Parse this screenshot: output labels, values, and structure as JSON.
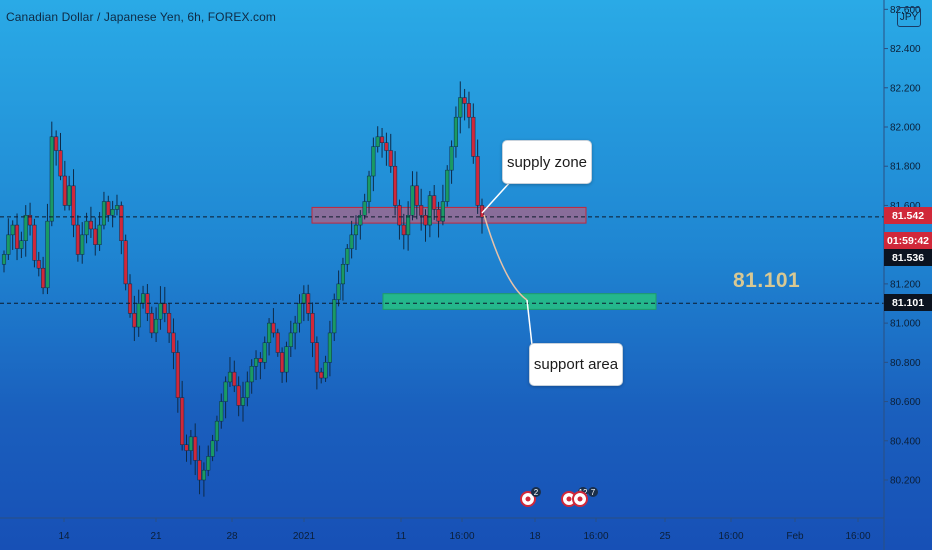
{
  "header": {
    "title": "Canadian Dollar / Japanese Yen, 6h, FOREX.com",
    "currency": "JPY"
  },
  "price_labels": {
    "current_price": "81.542",
    "countdown": "01:59:42",
    "bid_price": "81.536",
    "support_price": "81.101"
  },
  "annotations": {
    "supply_label": "supply zone",
    "support_label": "support area",
    "level_text": "81.101"
  },
  "event_markers": {
    "first_count": "2",
    "second_count": "12",
    "third_count": "7"
  },
  "colors": {
    "bull_candle": "#1a9a64",
    "bear_candle": "#d0283a",
    "supply_zone": "#e0566a",
    "support_zone": "#26c281",
    "current_price_tag": "#d0283a",
    "support_price_tag": "#0b1320"
  },
  "chart_data": {
    "type": "candlestick",
    "symbol": "CAD/JPY",
    "timeframe": "6h",
    "y_axis": {
      "ticks": [
        "80.200",
        "80.400",
        "80.600",
        "80.800",
        "81.000",
        "81.200",
        "81.400",
        "81.600",
        "81.800",
        "82.000",
        "82.200",
        "82.400",
        "82.600"
      ],
      "range": [
        80.0,
        82.65
      ]
    },
    "x_axis": {
      "ticks": [
        "14",
        "21",
        "28",
        "2021",
        "11",
        "16:00",
        "18",
        "16:00",
        "25",
        "16:00",
        "Feb",
        "16:00"
      ]
    },
    "horizontal_lines": [
      81.542,
      81.101
    ],
    "zones": [
      {
        "name": "supply zone",
        "from": 81.51,
        "to": 81.59
      },
      {
        "name": "support area",
        "from": 81.07,
        "to": 81.15
      }
    ],
    "closes": [
      81.35,
      81.45,
      81.5,
      81.38,
      81.42,
      81.55,
      81.5,
      81.32,
      81.28,
      81.18,
      81.52,
      81.95,
      81.88,
      81.75,
      81.6,
      81.7,
      81.5,
      81.35,
      81.45,
      81.52,
      81.48,
      81.4,
      81.5,
      81.62,
      81.55,
      81.58,
      81.6,
      81.42,
      81.2,
      81.05,
      80.98,
      81.1,
      81.15,
      81.05,
      80.95,
      81.02,
      81.1,
      81.05,
      80.95,
      80.85,
      80.62,
      80.38,
      80.35,
      80.42,
      80.3,
      80.2,
      80.25,
      80.32,
      80.4,
      80.5,
      80.6,
      80.7,
      80.75,
      80.68,
      80.58,
      80.62,
      80.7,
      80.78,
      80.82,
      80.8,
      80.9,
      81.0,
      80.95,
      80.85,
      80.75,
      80.88,
      80.95,
      81.0,
      81.1,
      81.15,
      81.05,
      80.9,
      80.75,
      80.72,
      80.8,
      80.95,
      81.12,
      81.2,
      81.3,
      81.38,
      81.45,
      81.5,
      81.55,
      81.62,
      81.75,
      81.9,
      81.95,
      81.92,
      81.88,
      81.8,
      81.6,
      81.5,
      81.45,
      81.55,
      81.7,
      81.6,
      81.55,
      81.5,
      81.65,
      81.58,
      81.52,
      81.62,
      81.78,
      81.9,
      82.05,
      82.15,
      82.12,
      82.05,
      81.85,
      81.6,
      81.54
    ],
    "opens": [
      81.3,
      81.35,
      81.45,
      81.5,
      81.38,
      81.42,
      81.55,
      81.5,
      81.32,
      81.28,
      81.18,
      81.52,
      81.95,
      81.88,
      81.75,
      81.6,
      81.7,
      81.5,
      81.35,
      81.45,
      81.52,
      81.48,
      81.4,
      81.5,
      81.62,
      81.55,
      81.58,
      81.6,
      81.42,
      81.2,
      81.05,
      80.98,
      81.1,
      81.15,
      81.05,
      80.95,
      81.02,
      81.1,
      81.05,
      80.95,
      80.85,
      80.62,
      80.38,
      80.35,
      80.42,
      80.3,
      80.2,
      80.25,
      80.32,
      80.4,
      80.5,
      80.6,
      80.7,
      80.75,
      80.68,
      80.58,
      80.62,
      80.7,
      80.78,
      80.82,
      80.8,
      80.9,
      81.0,
      80.95,
      80.85,
      80.75,
      80.88,
      80.95,
      81.0,
      81.1,
      81.15,
      81.05,
      80.9,
      80.75,
      80.72,
      80.8,
      80.95,
      81.12,
      81.2,
      81.3,
      81.38,
      81.45,
      81.5,
      81.55,
      81.62,
      81.75,
      81.9,
      81.95,
      81.92,
      81.88,
      81.8,
      81.6,
      81.5,
      81.45,
      81.55,
      81.7,
      81.6,
      81.55,
      81.5,
      81.65,
      81.58,
      81.52,
      81.62,
      81.78,
      81.9,
      82.05,
      82.15,
      82.12,
      82.05,
      81.85,
      81.6
    ]
  }
}
